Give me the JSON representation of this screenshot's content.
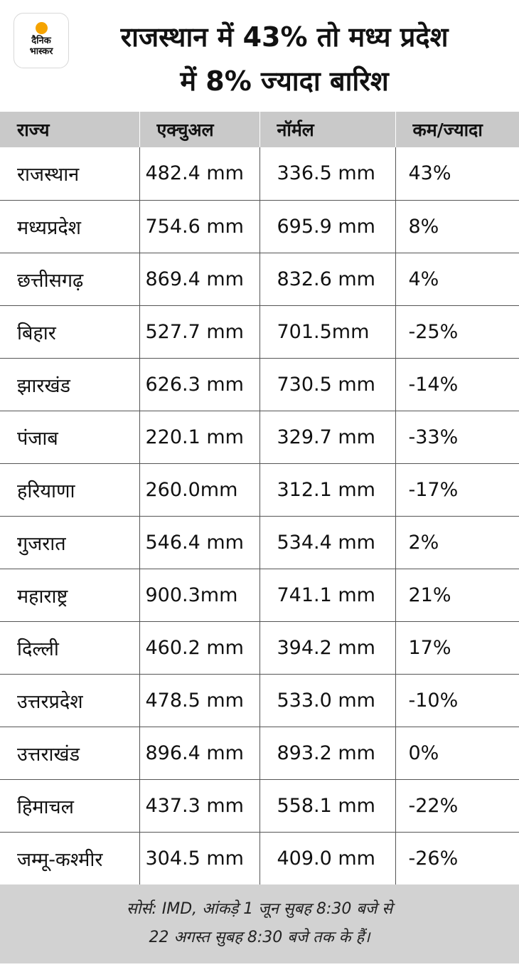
{
  "logo": {
    "line1": "दैनिक",
    "line2": "भास्कर",
    "sun_color": "#f5a300"
  },
  "header": {
    "title_line1": "राजस्थान में 43% तो मध्य प्रदेश",
    "title_line2": "में 8% ज्यादा बारिश"
  },
  "table": {
    "columns": [
      "राज्य",
      "एक्चुअल",
      "नॉर्मल",
      "कम/ज्यादा"
    ],
    "rows": [
      [
        "राजस्थान",
        "482.4 mm",
        "336.5 mm",
        "43%"
      ],
      [
        "मध्यप्रदेश",
        "754.6 mm",
        "695.9 mm",
        "8%"
      ],
      [
        "छत्तीसगढ़",
        "869.4 mm",
        "832.6 mm",
        "4%"
      ],
      [
        "बिहार",
        "527.7 mm",
        "701.5mm",
        "-25%"
      ],
      [
        "झारखंड",
        "626.3 mm",
        "730.5 mm",
        "-14%"
      ],
      [
        "पंजाब",
        "220.1 mm",
        "329.7 mm",
        "-33%"
      ],
      [
        "हरियाणा",
        "260.0mm",
        "312.1 mm",
        "-17%"
      ],
      [
        "गुजरात",
        "546.4 mm",
        "534.4 mm",
        "2%"
      ],
      [
        "महाराष्ट्र",
        "900.3mm",
        "741.1 mm",
        "21%"
      ],
      [
        "दिल्ली",
        "460.2 mm",
        "394.2 mm",
        "17%"
      ],
      [
        "उत्तरप्रदेश",
        "478.5 mm",
        "533.0 mm",
        "-10%"
      ],
      [
        "उत्तराखंड",
        "896.4 mm",
        "893.2 mm",
        "0%"
      ],
      [
        "हिमाचल",
        "437.3 mm",
        "558.1 mm",
        "-22%"
      ],
      [
        "जम्मू-कश्मीर",
        "304.5 mm",
        "409.0 mm",
        "-26%"
      ]
    ]
  },
  "footer": {
    "line1": "सोर्स: IMD, आंकड़े 1 जून सुबह 8:30 बजे से",
    "line2": "22 अगस्त सुबह 8:30 बजे तक के हैं।"
  }
}
